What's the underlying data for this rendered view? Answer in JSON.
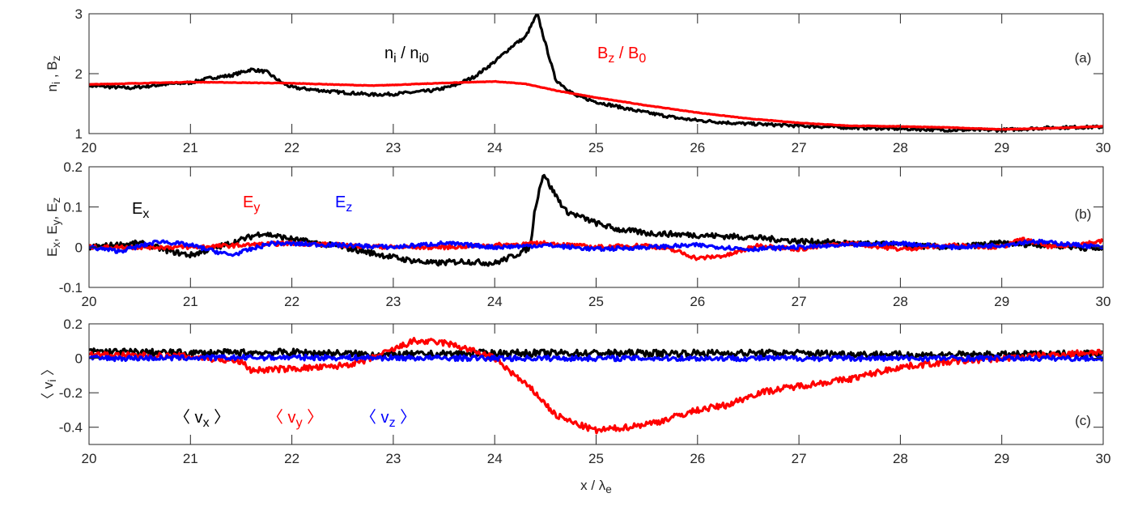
{
  "chart_data": [
    {
      "type": "line",
      "panel_label": "(a)",
      "ylabel": [
        {
          "t": "n"
        },
        {
          "t": "i",
          "sub": true
        },
        {
          "t": " , B"
        },
        {
          "t": "z",
          "sub": true
        }
      ],
      "xlim": [
        20,
        30
      ],
      "ylim": [
        1,
        3
      ],
      "xticks": [
        20,
        21,
        22,
        23,
        24,
        25,
        26,
        27,
        28,
        29,
        30
      ],
      "yticks": [
        1,
        2,
        3
      ],
      "ytick_labels": [
        "1",
        "2",
        "3"
      ],
      "annotations": [
        {
          "color": "#000000",
          "parts": [
            {
              "t": "n"
            },
            {
              "t": "i",
              "sub": true
            },
            {
              "t": " / n"
            },
            {
              "t": "i0",
              "sub": true
            }
          ]
        },
        {
          "color": "#ff0000",
          "parts": [
            {
              "t": "B"
            },
            {
              "t": "z",
              "sub": true
            },
            {
              "t": " / B"
            },
            {
              "t": "0",
              "sub": true
            }
          ]
        }
      ],
      "series": [
        {
          "name": "n_i / n_i0",
          "color": "#000000",
          "noise": 0.025,
          "x": [
            20,
            20.4,
            20.8,
            21,
            21.2,
            21.4,
            21.6,
            21.75,
            21.9,
            22,
            22.4,
            22.8,
            23,
            23.4,
            23.6,
            23.8,
            24,
            24.2,
            24.3,
            24.42,
            24.5,
            24.6,
            24.8,
            25,
            25.4,
            25.8,
            26,
            26.4,
            27,
            27.5,
            28,
            28.5,
            29,
            29.5,
            30
          ],
          "y": [
            1.8,
            1.76,
            1.83,
            1.85,
            1.93,
            1.97,
            2.07,
            2.03,
            1.85,
            1.77,
            1.7,
            1.65,
            1.66,
            1.72,
            1.8,
            1.95,
            2.2,
            2.5,
            2.6,
            3.0,
            2.5,
            1.9,
            1.63,
            1.53,
            1.38,
            1.26,
            1.22,
            1.17,
            1.13,
            1.1,
            1.08,
            1.06,
            1.06,
            1.1,
            1.11
          ]
        },
        {
          "name": "B_z / B_0",
          "color": "#ff0000",
          "noise": 0.004,
          "x": [
            20,
            21,
            22,
            22.8,
            23.6,
            24,
            24.3,
            24.6,
            25,
            25.5,
            26,
            26.5,
            27,
            27.5,
            28,
            28.5,
            29,
            29.5,
            30
          ],
          "y": [
            1.82,
            1.86,
            1.84,
            1.8,
            1.85,
            1.87,
            1.83,
            1.72,
            1.6,
            1.47,
            1.35,
            1.25,
            1.18,
            1.13,
            1.12,
            1.1,
            1.07,
            1.09,
            1.12
          ]
        }
      ]
    },
    {
      "type": "line",
      "panel_label": "(b)",
      "ylabel": [
        {
          "t": "E"
        },
        {
          "t": "x",
          "sub": true
        },
        {
          "t": ", E"
        },
        {
          "t": "y",
          "sub": true
        },
        {
          "t": ", E"
        },
        {
          "t": "z",
          "sub": true
        }
      ],
      "xlim": [
        20,
        30
      ],
      "ylim": [
        -0.1,
        0.2
      ],
      "xticks": [
        20,
        21,
        22,
        23,
        24,
        25,
        26,
        27,
        28,
        29,
        30
      ],
      "yticks": [
        -0.1,
        0,
        0.1,
        0.2
      ],
      "ytick_labels": [
        "-0.1",
        "0",
        "0.1",
        "0.2"
      ],
      "annotations": [
        {
          "color": "#000000",
          "parts": [
            {
              "t": "E"
            },
            {
              "t": "x",
              "sub": true
            }
          ]
        },
        {
          "color": "#ff0000",
          "parts": [
            {
              "t": "E"
            },
            {
              "t": "y",
              "sub": true
            }
          ]
        },
        {
          "color": "#0000ff",
          "parts": [
            {
              "t": "E"
            },
            {
              "t": "z",
              "sub": true
            }
          ]
        }
      ],
      "series": [
        {
          "name": "E_x",
          "color": "#000000",
          "noise": 0.007,
          "x": [
            20,
            20.5,
            20.8,
            21,
            21.4,
            21.7,
            22,
            22.5,
            22.9,
            23.1,
            23.4,
            23.7,
            24,
            24.2,
            24.35,
            24.4,
            24.48,
            24.55,
            24.7,
            24.9,
            25,
            25.2,
            25.5,
            26,
            26.5,
            27,
            27.5,
            28,
            28.5,
            29,
            29.5,
            30
          ],
          "y": [
            0,
            0.01,
            -0.01,
            -0.02,
            0.01,
            0.035,
            0.02,
            0,
            -0.02,
            -0.03,
            -0.04,
            -0.035,
            -0.04,
            -0.02,
            0,
            0.1,
            0.185,
            0.15,
            0.09,
            0.07,
            0.06,
            0.045,
            0.035,
            0.03,
            0.025,
            0.015,
            0.01,
            0.005,
            0,
            0.01,
            0.005,
            -0.005
          ]
        },
        {
          "name": "E_y",
          "color": "#ff0000",
          "noise": 0.005,
          "x": [
            20,
            21,
            22,
            23,
            23.5,
            24,
            24.5,
            25,
            25.5,
            25.8,
            26,
            26.3,
            26.6,
            27,
            27.5,
            28,
            28.5,
            29,
            29.2,
            29.5,
            30
          ],
          "y": [
            0,
            0,
            0.01,
            0,
            0,
            0.005,
            0.01,
            0,
            0.005,
            -0.01,
            -0.028,
            -0.02,
            0.005,
            -0.005,
            0.01,
            -0.005,
            0.005,
            0,
            0.02,
            0,
            0.015
          ]
        },
        {
          "name": "E_z",
          "color": "#0000ff",
          "noise": 0.005,
          "x": [
            20,
            20.3,
            20.7,
            21,
            21.4,
            21.8,
            22.5,
            23,
            23.5,
            24,
            24.5,
            25,
            25.5,
            26,
            26.5,
            27,
            27.5,
            28,
            28.5,
            29,
            29.3,
            30
          ],
          "y": [
            0,
            -0.01,
            0.015,
            0.005,
            -0.02,
            0.01,
            0.005,
            0,
            0.01,
            0,
            0.005,
            -0.005,
            0,
            0.005,
            -0.005,
            0,
            0.005,
            0.01,
            0,
            0.005,
            0.015,
            0
          ]
        }
      ]
    },
    {
      "type": "line",
      "panel_label": "(c)",
      "ylabel": [
        {
          "t": "〈 v"
        },
        {
          "t": "i",
          "sub": true
        },
        {
          "t": " 〉"
        }
      ],
      "xlabel": [
        {
          "t": "x / λ"
        },
        {
          "t": "e",
          "sub": true
        }
      ],
      "xlim": [
        20,
        30
      ],
      "ylim": [
        -0.5,
        0.2
      ],
      "xticks": [
        20,
        21,
        22,
        23,
        24,
        25,
        26,
        27,
        28,
        29,
        30
      ],
      "yticks": [
        -0.4,
        -0.2,
        0,
        0.2
      ],
      "ytick_labels": [
        "-0.4",
        "-0.2",
        "0",
        "0.2"
      ],
      "annotations": [
        {
          "color": "#000000",
          "parts": [
            {
              "t": "〈 v"
            },
            {
              "t": "x",
              "sub": true
            },
            {
              "t": " 〉"
            }
          ]
        },
        {
          "color": "#ff0000",
          "parts": [
            {
              "t": "〈 v"
            },
            {
              "t": "y",
              "sub": true
            },
            {
              "t": " 〉"
            }
          ]
        },
        {
          "color": "#0000ff",
          "parts": [
            {
              "t": "〈 v"
            },
            {
              "t": "z",
              "sub": true
            },
            {
              "t": " 〉"
            }
          ]
        }
      ],
      "series": [
        {
          "name": "<v_x>",
          "color": "#000000",
          "noise": 0.02,
          "x": [
            20,
            21,
            22,
            23,
            24,
            25,
            26,
            27,
            28,
            29,
            30
          ],
          "y": [
            0.04,
            0.03,
            0.035,
            0.02,
            0.03,
            0.03,
            0.03,
            0.03,
            0.02,
            0.02,
            0.03
          ]
        },
        {
          "name": "<v_y>",
          "color": "#ff0000",
          "noise": 0.018,
          "x": [
            20,
            21,
            21.5,
            21.6,
            22,
            22.4,
            22.7,
            23,
            23.2,
            23.5,
            23.7,
            24,
            24.2,
            24.4,
            24.6,
            24.8,
            25,
            25.3,
            25.6,
            26,
            26.3,
            26.6,
            27,
            27.5,
            28,
            28.5,
            29,
            30
          ],
          "y": [
            0.02,
            0.01,
            -0.02,
            -0.07,
            -0.06,
            -0.05,
            -0.02,
            0.05,
            0.1,
            0.09,
            0.06,
            0,
            -0.1,
            -0.2,
            -0.33,
            -0.38,
            -0.42,
            -0.4,
            -0.37,
            -0.3,
            -0.27,
            -0.2,
            -0.16,
            -0.12,
            -0.05,
            -0.02,
            0,
            0.04
          ]
        },
        {
          "name": "<v_z>",
          "color": "#0000ff",
          "noise": 0.015,
          "x": [
            20,
            22,
            24,
            26,
            28,
            30
          ],
          "y": [
            0,
            0.005,
            0,
            0,
            0,
            0
          ]
        }
      ]
    }
  ]
}
